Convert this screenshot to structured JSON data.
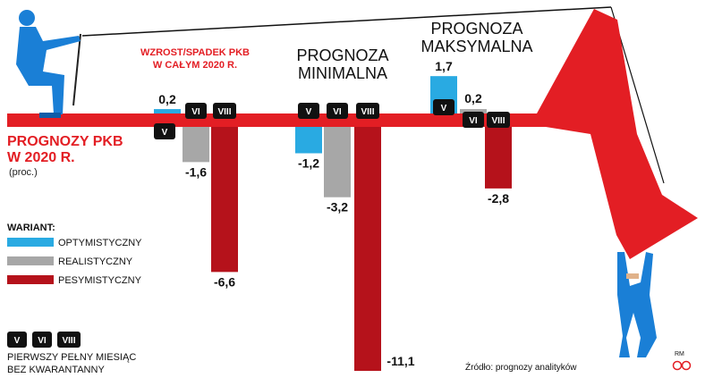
{
  "title_line1": "PROGNOZY PKB",
  "title_line2": "W 2020 R.",
  "unit": "(proc.)",
  "box_label_line1": "WZROST/SPADEK PKB",
  "box_label_line2": "W CAŁYM 2020 R.",
  "group_min_line1": "PROGNOZA",
  "group_min_line2": "MINIMALNA",
  "group_max_line1": "PROGNOZA",
  "group_max_line2": "MAKSYMALNA",
  "legend_title": "WARIANT:",
  "legend": [
    {
      "label": "OPTYMISTYCZNY",
      "color": "#29aae2"
    },
    {
      "label": "REALISTYCZNY",
      "color": "#a7a7a7"
    },
    {
      "label": "PESYMISTYCZNY",
      "color": "#b5121b"
    }
  ],
  "month_note_line1": "PIERWSZY PEŁNY MIESIĄC",
  "month_note_line2": "BEZ KWARANTANNY",
  "source": "Źródło: prognozy analityków",
  "credit_initials": "RM",
  "month_tags": [
    "V",
    "VI",
    "VIII"
  ],
  "chart_data": {
    "type": "bar",
    "groups": [
      "WZROST/SPADEK PKB W CAŁYM 2020 R.",
      "PROGNOZA MINIMALNA",
      "PROGNOZA MAKSYMALNA"
    ],
    "series": [
      {
        "name": "OPTYMISTYCZNY",
        "month": "V",
        "values": [
          0.2,
          -1.2,
          1.7
        ]
      },
      {
        "name": "REALISTYCZNY",
        "month": "VI",
        "values": [
          -1.6,
          -3.2,
          0.2
        ]
      },
      {
        "name": "PESYMISTYCZNY",
        "month": "VIII",
        "values": [
          -6.6,
          -11.1,
          -2.8
        ]
      }
    ],
    "value_labels": [
      [
        "0,2",
        "-1,2",
        "1,7"
      ],
      [
        "-1,6",
        "-3,2",
        "0,2"
      ],
      [
        "-6,6",
        "-11,1",
        "-2,8"
      ]
    ],
    "colors": {
      "red": "#e31e24",
      "cyan": "#29aae2",
      "gray": "#a7a7a7",
      "darkred": "#b5121b"
    }
  }
}
